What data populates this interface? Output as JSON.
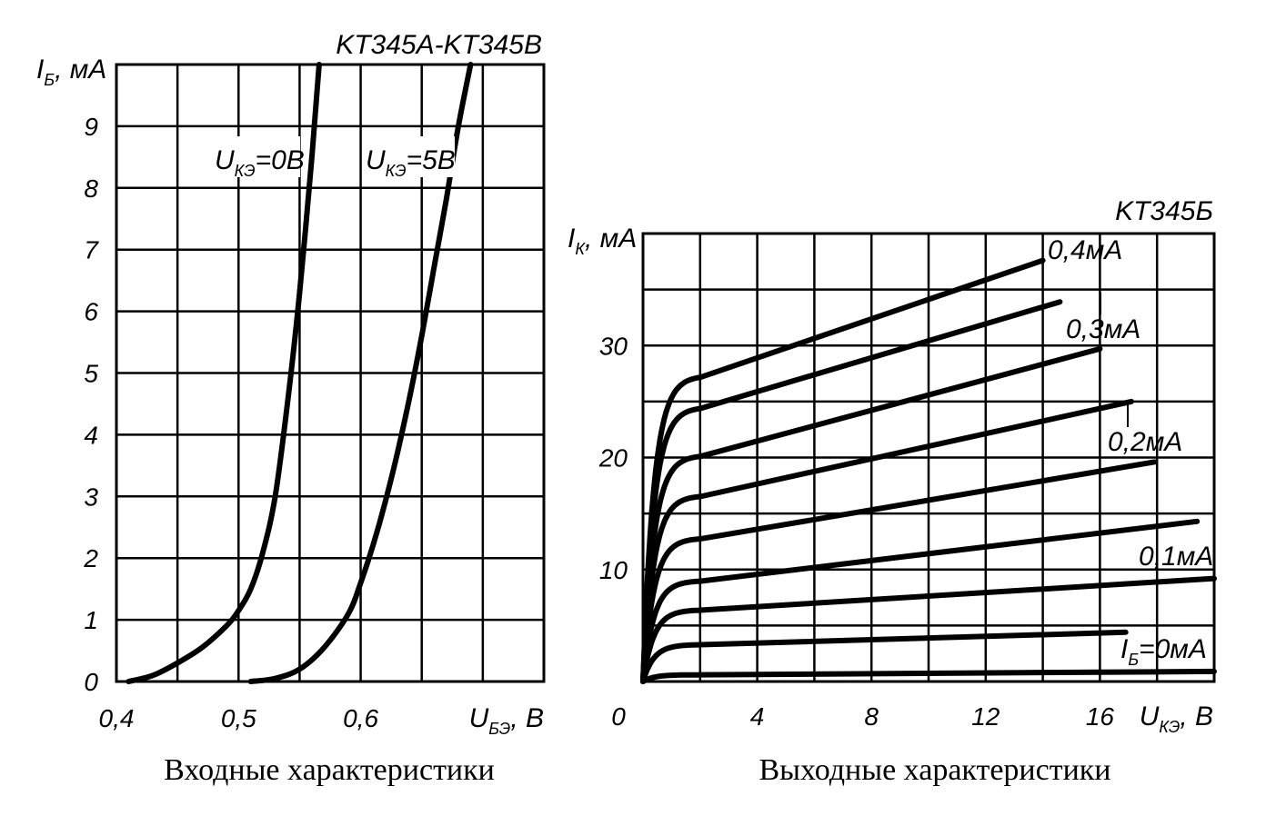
{
  "chart_data": [
    {
      "type": "line",
      "title": "KT345A-KT345B",
      "caption": "Входные характеристики",
      "ylabel": {
        "main": "I",
        "sub": "Б",
        "unit": ", мА"
      },
      "xlabel": {
        "main": "U",
        "sub": "БЭ",
        "unit": ", В"
      },
      "xlim": [
        0.4,
        0.75
      ],
      "ylim": [
        0,
        10
      ],
      "x_ticks": [
        "0,4",
        "0,5",
        "0,6"
      ],
      "y_ticks": [
        "0",
        "1",
        "2",
        "3",
        "4",
        "5",
        "6",
        "7",
        "8",
        "9"
      ],
      "grid": true,
      "series": [
        {
          "name": "UКЭ=0В",
          "label": {
            "main": "U",
            "sub": "КЭ",
            "rest": "=0В"
          },
          "points": [
            [
              0.41,
              0
            ],
            [
              0.43,
              0.1
            ],
            [
              0.45,
              0.3
            ],
            [
              0.47,
              0.55
            ],
            [
              0.49,
              0.9
            ],
            [
              0.5,
              1.15
            ],
            [
              0.51,
              1.5
            ],
            [
              0.52,
              2.1
            ],
            [
              0.53,
              3.0
            ],
            [
              0.54,
              4.5
            ],
            [
              0.55,
              6.3
            ],
            [
              0.56,
              8.5
            ],
            [
              0.566,
              10
            ]
          ]
        },
        {
          "name": "UКЭ=5В",
          "label": {
            "main": "U",
            "sub": "КЭ",
            "rest": "=5В"
          },
          "points": [
            [
              0.51,
              0
            ],
            [
              0.53,
              0.05
            ],
            [
              0.55,
              0.2
            ],
            [
              0.57,
              0.55
            ],
            [
              0.59,
              1.1
            ],
            [
              0.6,
              1.6
            ],
            [
              0.61,
              2.2
            ],
            [
              0.62,
              2.9
            ],
            [
              0.63,
              3.7
            ],
            [
              0.64,
              4.6
            ],
            [
              0.65,
              5.6
            ],
            [
              0.66,
              6.7
            ],
            [
              0.67,
              7.8
            ],
            [
              0.68,
              9
            ],
            [
              0.69,
              10
            ]
          ]
        }
      ]
    },
    {
      "type": "line",
      "title": "KT345Б",
      "caption": "Выходные характеристики",
      "ylabel": {
        "main": "I",
        "sub": "К",
        "unit": ", мА"
      },
      "xlabel": {
        "main": "U",
        "sub": "КЭ",
        "unit": ", В"
      },
      "xlim": [
        0,
        20
      ],
      "ylim": [
        0,
        40
      ],
      "x_ticks": [
        "4",
        "8",
        "12",
        "16"
      ],
      "y_ticks": [
        "10",
        "20",
        "30"
      ],
      "origin_label": "0",
      "grid": true,
      "series": [
        {
          "name": "IБ=0мА",
          "knee": 0.6,
          "x_end": 20.0,
          "y_start": 0.6,
          "y_end": 0.9
        },
        {
          "name": "",
          "knee": 3.5,
          "x_end": 16.9,
          "y_start": 3.3,
          "y_end": 4.4
        },
        {
          "name": "",
          "knee": 6.5,
          "x_end": 20.0,
          "y_start": 6.4,
          "y_end": 9.2
        },
        {
          "name": "0,1мА",
          "knee": 9.0,
          "x_end": 19.4,
          "y_start": 9.0,
          "y_end": 14.3
        },
        {
          "name": "",
          "knee": 12.5,
          "x_end": 17.9,
          "y_start": 12.8,
          "y_end": 19.6
        },
        {
          "name": "0,2мА",
          "knee": 16.5,
          "x_end": 17.1,
          "y_start": 16.6,
          "y_end": 25.0
        },
        {
          "name": "",
          "knee": 20.0,
          "x_end": 16.0,
          "y_start": 20.2,
          "y_end": 29.7
        },
        {
          "name": "0,3мА",
          "knee": 24.5,
          "x_end": 14.6,
          "y_start": 24.5,
          "y_end": 33.9
        },
        {
          "name": "0,4мА",
          "knee": 27.0,
          "x_end": 14.0,
          "y_start": 27.3,
          "y_end": 37.6
        }
      ],
      "curve_labels": [
        {
          "series": "0,4мА",
          "text": "0,4мА"
        },
        {
          "series": "0,3мА",
          "text": "0,3мА"
        },
        {
          "series": "0,2мА",
          "text": "0,2мА"
        },
        {
          "series": "0,1мА",
          "text": "0,1мА"
        },
        {
          "series": "IБ=0мА",
          "text": "",
          "main": "I",
          "sub": "Б",
          "rest": "=0мА"
        }
      ]
    }
  ]
}
